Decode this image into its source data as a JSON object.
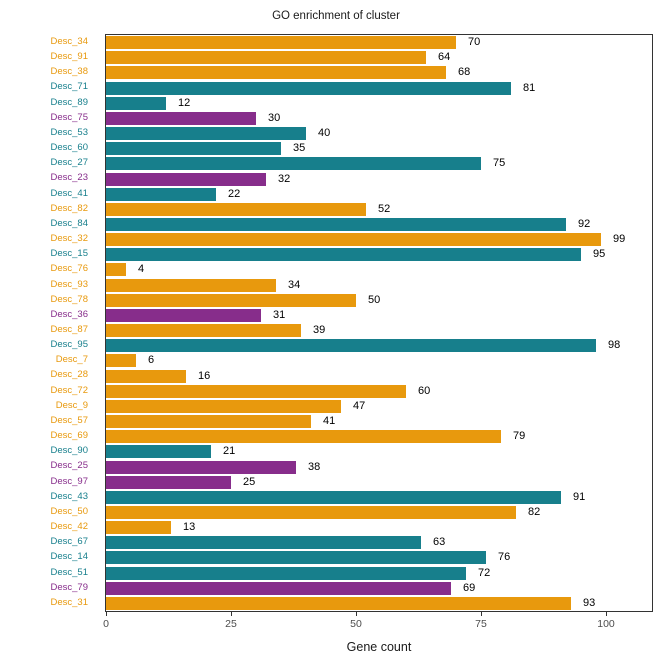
{
  "title": "GO enrichment of cluster",
  "chart_data": {
    "type": "bar",
    "orientation": "horizontal",
    "title": "GO enrichment of cluster",
    "xlabel": "Gene count",
    "ylabel": "",
    "xticks": [
      0,
      25,
      50,
      75,
      100
    ],
    "xlim": [
      0,
      109
    ],
    "grid": false,
    "legend": false,
    "bar_value_labels": true,
    "palette": {
      "orange": "#E8990D",
      "teal": "#177F8C",
      "purple": "#872D8B"
    },
    "text_colors": {
      "value_label": "#000000",
      "tick_label": "#4d4d4d",
      "axis_title": "#1a1a1a",
      "panel_border": "#333333"
    },
    "categories": [
      "Desc_34",
      "Desc_91",
      "Desc_38",
      "Desc_71",
      "Desc_89",
      "Desc_75",
      "Desc_53",
      "Desc_60",
      "Desc_27",
      "Desc_23",
      "Desc_41",
      "Desc_82",
      "Desc_84",
      "Desc_32",
      "Desc_15",
      "Desc_76",
      "Desc_93",
      "Desc_78",
      "Desc_36",
      "Desc_87",
      "Desc_95",
      "Desc_7",
      "Desc_28",
      "Desc_72",
      "Desc_9",
      "Desc_57",
      "Desc_69",
      "Desc_90",
      "Desc_25",
      "Desc_97",
      "Desc_43",
      "Desc_50",
      "Desc_42",
      "Desc_67",
      "Desc_14",
      "Desc_51",
      "Desc_79",
      "Desc_31"
    ],
    "values": [
      70,
      64,
      68,
      81,
      12,
      30,
      40,
      35,
      75,
      32,
      22,
      52,
      92,
      99,
      95,
      4,
      34,
      50,
      31,
      39,
      98,
      6,
      16,
      60,
      47,
      41,
      79,
      21,
      38,
      25,
      91,
      82,
      13,
      63,
      76,
      72,
      69,
      93
    ],
    "colors": [
      "orange",
      "orange",
      "orange",
      "teal",
      "teal",
      "purple",
      "teal",
      "teal",
      "teal",
      "purple",
      "teal",
      "orange",
      "teal",
      "orange",
      "teal",
      "orange",
      "orange",
      "orange",
      "purple",
      "orange",
      "teal",
      "orange",
      "orange",
      "orange",
      "orange",
      "orange",
      "orange",
      "teal",
      "purple",
      "purple",
      "teal",
      "orange",
      "orange",
      "teal",
      "teal",
      "teal",
      "purple",
      "orange"
    ]
  }
}
